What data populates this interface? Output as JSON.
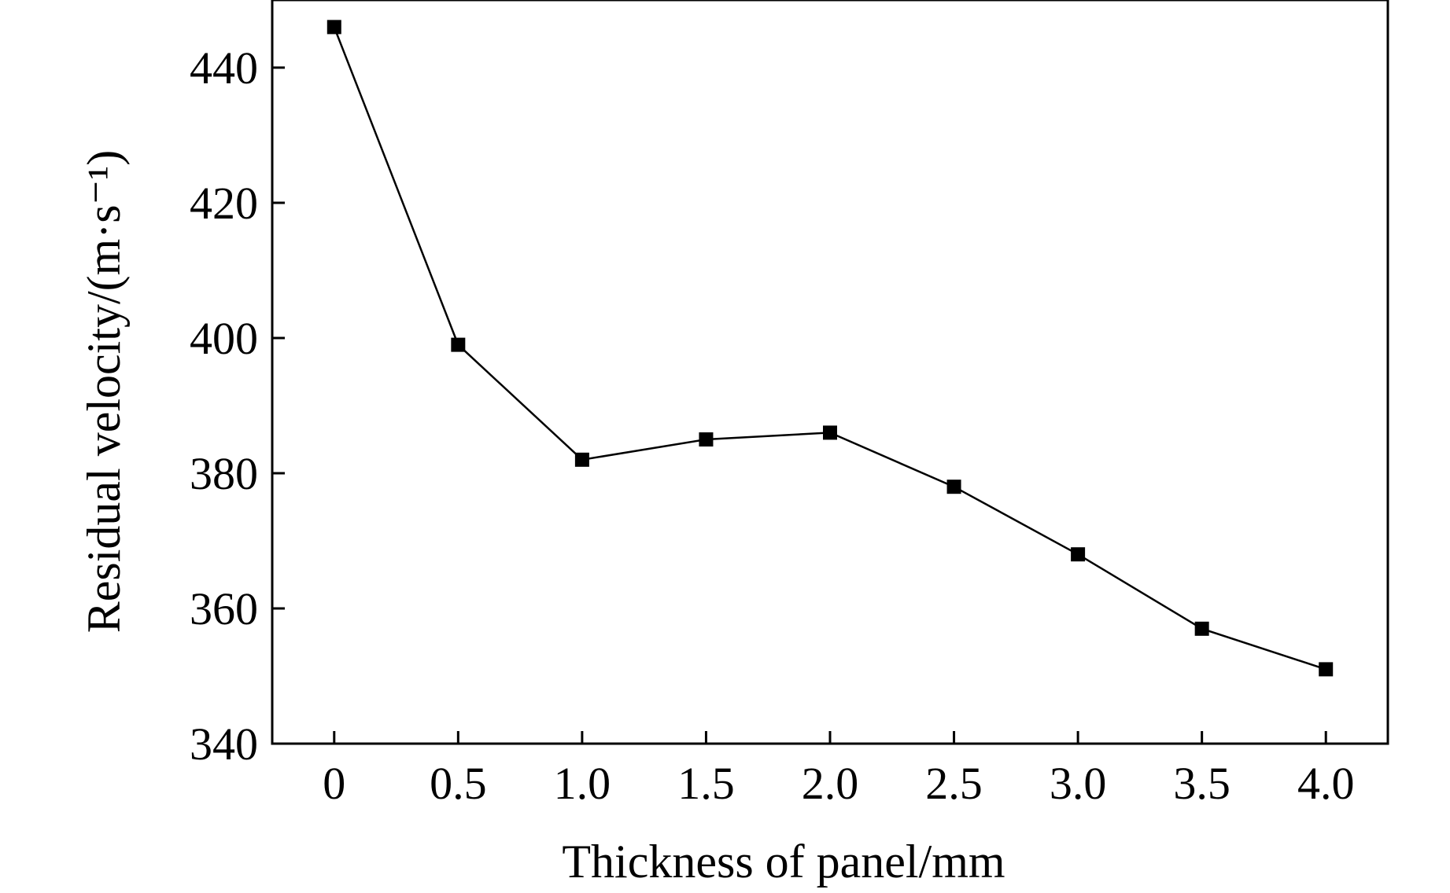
{
  "chart_data": {
    "type": "line",
    "title": "",
    "xlabel": "Thickness of panel/mm",
    "ylabel": "Residual velocity/(m·s⁻¹)",
    "x": [
      0,
      0.5,
      1.0,
      1.5,
      2.0,
      2.5,
      3.0,
      3.5,
      4.0
    ],
    "x_tick_labels": [
      "0",
      "0.5",
      "1.0",
      "1.5",
      "2.0",
      "2.5",
      "3.0",
      "3.5",
      "4.0"
    ],
    "y_ticks": [
      340,
      360,
      380,
      400,
      420,
      440
    ],
    "y_tick_labels": [
      "340",
      "360",
      "380",
      "400",
      "420",
      "440"
    ],
    "xlim": [
      -0.25,
      4.25
    ],
    "ylim": [
      340,
      450
    ],
    "series": [
      {
        "marker": "square",
        "color": "#000000",
        "values": [
          446,
          399,
          382,
          385,
          386,
          378,
          368,
          357,
          351
        ]
      }
    ],
    "grid": false,
    "legend": "none"
  }
}
